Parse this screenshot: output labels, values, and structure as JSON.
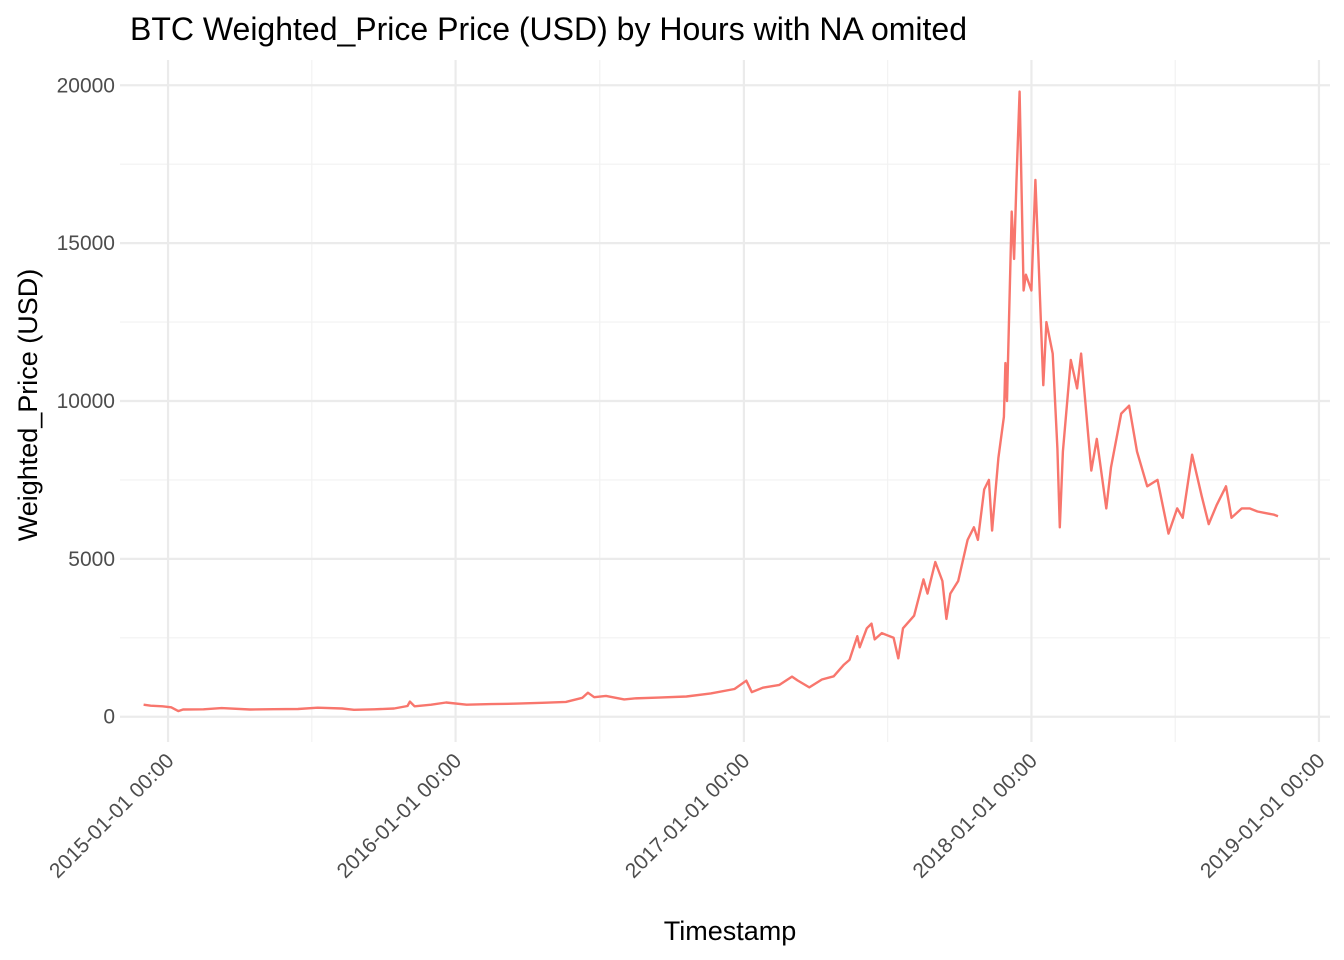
{
  "chart_data": {
    "type": "line",
    "title": "BTC Weighted_Price Price (USD) by Hours with NA omited",
    "xlabel": "Timestamp",
    "ylabel": "Weighted_Price (USD)",
    "x_ticks": [
      "2015-01-01 00:00",
      "2016-01-01 00:00",
      "2017-01-01 00:00",
      "2018-01-01 00:00",
      "2019-01-01 00:00"
    ],
    "y_ticks": [
      0,
      5000,
      10000,
      15000,
      20000
    ],
    "xlim": [
      "2014-11-01",
      "2019-01-15"
    ],
    "ylim": [
      -800,
      20800
    ],
    "grid": true,
    "legend": "none",
    "color": "#f8766d",
    "series": [
      {
        "points": [
          [
            "2014-12-01",
            380
          ],
          [
            "2014-12-10",
            350
          ],
          [
            "2014-12-25",
            330
          ],
          [
            "2015-01-05",
            300
          ],
          [
            "2015-01-14",
            180
          ],
          [
            "2015-01-20",
            230
          ],
          [
            "2015-02-15",
            235
          ],
          [
            "2015-03-10",
            275
          ],
          [
            "2015-04-15",
            230
          ],
          [
            "2015-05-15",
            240
          ],
          [
            "2015-06-15",
            245
          ],
          [
            "2015-07-10",
            285
          ],
          [
            "2015-08-10",
            260
          ],
          [
            "2015-08-25",
            220
          ],
          [
            "2015-09-20",
            235
          ],
          [
            "2015-10-15",
            260
          ],
          [
            "2015-11-01",
            340
          ],
          [
            "2015-11-04",
            480
          ],
          [
            "2015-11-10",
            330
          ],
          [
            "2015-12-01",
            380
          ],
          [
            "2015-12-20",
            450
          ],
          [
            "2016-01-15",
            380
          ],
          [
            "2016-02-15",
            400
          ],
          [
            "2016-03-20",
            415
          ],
          [
            "2016-04-20",
            440
          ],
          [
            "2016-05-20",
            470
          ],
          [
            "2016-06-10",
            600
          ],
          [
            "2016-06-17",
            760
          ],
          [
            "2016-06-25",
            620
          ],
          [
            "2016-07-10",
            660
          ],
          [
            "2016-08-02",
            550
          ],
          [
            "2016-08-15",
            580
          ],
          [
            "2016-09-15",
            605
          ],
          [
            "2016-10-20",
            640
          ],
          [
            "2016-11-20",
            740
          ],
          [
            "2016-12-20",
            880
          ],
          [
            "2017-01-04",
            1140
          ],
          [
            "2017-01-11",
            780
          ],
          [
            "2017-01-25",
            920
          ],
          [
            "2017-02-15",
            1010
          ],
          [
            "2017-03-03",
            1270
          ],
          [
            "2017-03-10",
            1150
          ],
          [
            "2017-03-25",
            930
          ],
          [
            "2017-04-10",
            1180
          ],
          [
            "2017-04-25",
            1280
          ],
          [
            "2017-05-08",
            1650
          ],
          [
            "2017-05-15",
            1800
          ],
          [
            "2017-05-25",
            2550
          ],
          [
            "2017-05-28",
            2200
          ],
          [
            "2017-06-06",
            2800
          ],
          [
            "2017-06-12",
            2950
          ],
          [
            "2017-06-16",
            2450
          ],
          [
            "2017-06-25",
            2650
          ],
          [
            "2017-07-10",
            2500
          ],
          [
            "2017-07-16",
            1850
          ],
          [
            "2017-07-22",
            2800
          ],
          [
            "2017-08-05",
            3200
          ],
          [
            "2017-08-17",
            4350
          ],
          [
            "2017-08-22",
            3900
          ],
          [
            "2017-09-01",
            4900
          ],
          [
            "2017-09-10",
            4300
          ],
          [
            "2017-09-15",
            3100
          ],
          [
            "2017-09-20",
            3900
          ],
          [
            "2017-09-30",
            4300
          ],
          [
            "2017-10-12",
            5600
          ],
          [
            "2017-10-20",
            6000
          ],
          [
            "2017-10-25",
            5600
          ],
          [
            "2017-11-02",
            7200
          ],
          [
            "2017-11-08",
            7500
          ],
          [
            "2017-11-12",
            5900
          ],
          [
            "2017-11-20",
            8200
          ],
          [
            "2017-11-27",
            9500
          ],
          [
            "2017-11-29",
            11200
          ],
          [
            "2017-12-01",
            10000
          ],
          [
            "2017-12-07",
            16000
          ],
          [
            "2017-12-10",
            14500
          ],
          [
            "2017-12-13",
            17000
          ],
          [
            "2017-12-17",
            19800
          ],
          [
            "2017-12-22",
            13500
          ],
          [
            "2017-12-25",
            14000
          ],
          [
            "2018-01-01",
            13500
          ],
          [
            "2018-01-06",
            17000
          ],
          [
            "2018-01-10",
            14500
          ],
          [
            "2018-01-16",
            10500
          ],
          [
            "2018-01-20",
            12500
          ],
          [
            "2018-01-28",
            11500
          ],
          [
            "2018-02-03",
            8500
          ],
          [
            "2018-02-06",
            6000
          ],
          [
            "2018-02-10",
            8400
          ],
          [
            "2018-02-20",
            11300
          ],
          [
            "2018-02-28",
            10400
          ],
          [
            "2018-03-05",
            11500
          ],
          [
            "2018-03-18",
            7800
          ],
          [
            "2018-03-25",
            8800
          ],
          [
            "2018-04-06",
            6600
          ],
          [
            "2018-04-12",
            7900
          ],
          [
            "2018-04-25",
            9600
          ],
          [
            "2018-05-05",
            9850
          ],
          [
            "2018-05-15",
            8400
          ],
          [
            "2018-05-28",
            7300
          ],
          [
            "2018-06-10",
            7500
          ],
          [
            "2018-06-24",
            5800
          ],
          [
            "2018-07-05",
            6600
          ],
          [
            "2018-07-12",
            6300
          ],
          [
            "2018-07-24",
            8300
          ],
          [
            "2018-08-05",
            7000
          ],
          [
            "2018-08-14",
            6100
          ],
          [
            "2018-08-24",
            6700
          ],
          [
            "2018-09-05",
            7300
          ],
          [
            "2018-09-12",
            6300
          ],
          [
            "2018-09-25",
            6600
          ],
          [
            "2018-10-05",
            6600
          ],
          [
            "2018-10-15",
            6500
          ],
          [
            "2018-10-25",
            6450
          ],
          [
            "2018-11-05",
            6400
          ],
          [
            "2018-11-10",
            6350
          ]
        ]
      }
    ]
  }
}
